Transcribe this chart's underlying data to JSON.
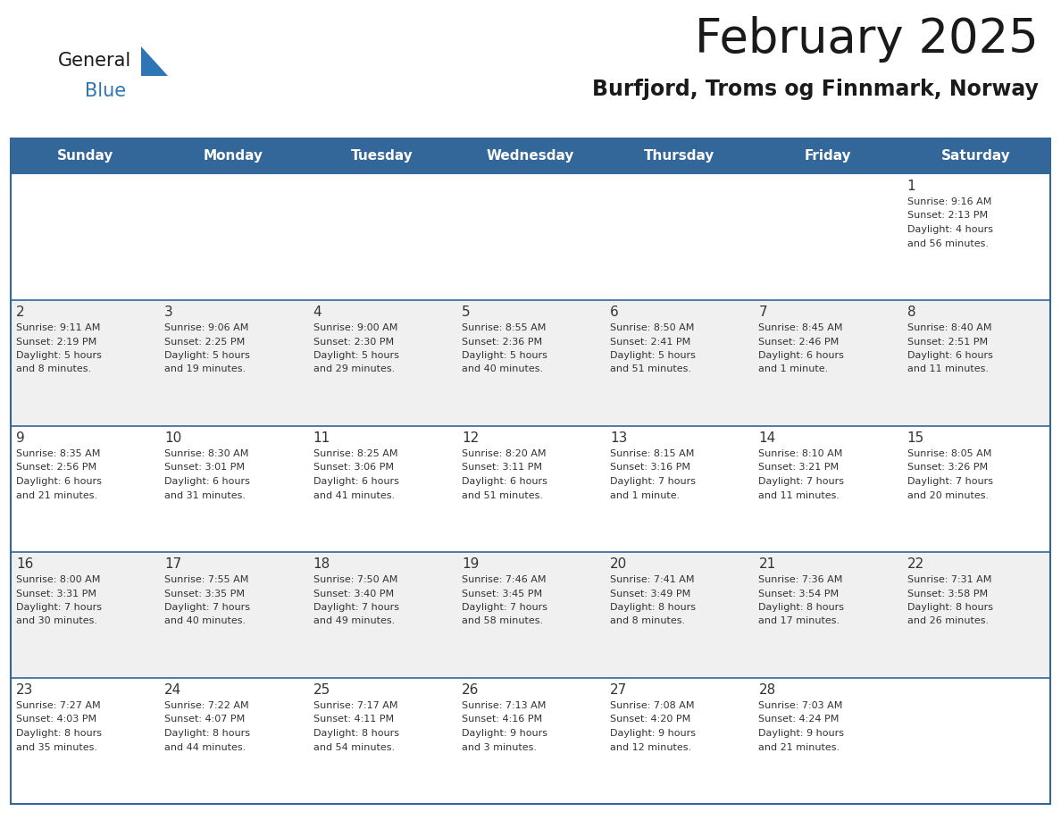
{
  "title": "February 2025",
  "subtitle": "Burfjord, Troms og Finnmark, Norway",
  "days_of_week": [
    "Sunday",
    "Monday",
    "Tuesday",
    "Wednesday",
    "Thursday",
    "Friday",
    "Saturday"
  ],
  "header_bg": "#336699",
  "header_text": "#FFFFFF",
  "row_bg_light": "#F0F0F0",
  "row_bg_white": "#FFFFFF",
  "cell_text": "#333333",
  "day_num_color": "#333333",
  "grid_color": "#336699",
  "title_color": "#1a1a1a",
  "subtitle_color": "#1a1a1a",
  "logo_general_color": "#1a1a1a",
  "logo_blue_color": "#2E75B6",
  "calendar": [
    [
      {
        "day": 0,
        "info": ""
      },
      {
        "day": 0,
        "info": ""
      },
      {
        "day": 0,
        "info": ""
      },
      {
        "day": 0,
        "info": ""
      },
      {
        "day": 0,
        "info": ""
      },
      {
        "day": 0,
        "info": ""
      },
      {
        "day": 1,
        "info": "Sunrise: 9:16 AM\nSunset: 2:13 PM\nDaylight: 4 hours\nand 56 minutes."
      }
    ],
    [
      {
        "day": 2,
        "info": "Sunrise: 9:11 AM\nSunset: 2:19 PM\nDaylight: 5 hours\nand 8 minutes."
      },
      {
        "day": 3,
        "info": "Sunrise: 9:06 AM\nSunset: 2:25 PM\nDaylight: 5 hours\nand 19 minutes."
      },
      {
        "day": 4,
        "info": "Sunrise: 9:00 AM\nSunset: 2:30 PM\nDaylight: 5 hours\nand 29 minutes."
      },
      {
        "day": 5,
        "info": "Sunrise: 8:55 AM\nSunset: 2:36 PM\nDaylight: 5 hours\nand 40 minutes."
      },
      {
        "day": 6,
        "info": "Sunrise: 8:50 AM\nSunset: 2:41 PM\nDaylight: 5 hours\nand 51 minutes."
      },
      {
        "day": 7,
        "info": "Sunrise: 8:45 AM\nSunset: 2:46 PM\nDaylight: 6 hours\nand 1 minute."
      },
      {
        "day": 8,
        "info": "Sunrise: 8:40 AM\nSunset: 2:51 PM\nDaylight: 6 hours\nand 11 minutes."
      }
    ],
    [
      {
        "day": 9,
        "info": "Sunrise: 8:35 AM\nSunset: 2:56 PM\nDaylight: 6 hours\nand 21 minutes."
      },
      {
        "day": 10,
        "info": "Sunrise: 8:30 AM\nSunset: 3:01 PM\nDaylight: 6 hours\nand 31 minutes."
      },
      {
        "day": 11,
        "info": "Sunrise: 8:25 AM\nSunset: 3:06 PM\nDaylight: 6 hours\nand 41 minutes."
      },
      {
        "day": 12,
        "info": "Sunrise: 8:20 AM\nSunset: 3:11 PM\nDaylight: 6 hours\nand 51 minutes."
      },
      {
        "day": 13,
        "info": "Sunrise: 8:15 AM\nSunset: 3:16 PM\nDaylight: 7 hours\nand 1 minute."
      },
      {
        "day": 14,
        "info": "Sunrise: 8:10 AM\nSunset: 3:21 PM\nDaylight: 7 hours\nand 11 minutes."
      },
      {
        "day": 15,
        "info": "Sunrise: 8:05 AM\nSunset: 3:26 PM\nDaylight: 7 hours\nand 20 minutes."
      }
    ],
    [
      {
        "day": 16,
        "info": "Sunrise: 8:00 AM\nSunset: 3:31 PM\nDaylight: 7 hours\nand 30 minutes."
      },
      {
        "day": 17,
        "info": "Sunrise: 7:55 AM\nSunset: 3:35 PM\nDaylight: 7 hours\nand 40 minutes."
      },
      {
        "day": 18,
        "info": "Sunrise: 7:50 AM\nSunset: 3:40 PM\nDaylight: 7 hours\nand 49 minutes."
      },
      {
        "day": 19,
        "info": "Sunrise: 7:46 AM\nSunset: 3:45 PM\nDaylight: 7 hours\nand 58 minutes."
      },
      {
        "day": 20,
        "info": "Sunrise: 7:41 AM\nSunset: 3:49 PM\nDaylight: 8 hours\nand 8 minutes."
      },
      {
        "day": 21,
        "info": "Sunrise: 7:36 AM\nSunset: 3:54 PM\nDaylight: 8 hours\nand 17 minutes."
      },
      {
        "day": 22,
        "info": "Sunrise: 7:31 AM\nSunset: 3:58 PM\nDaylight: 8 hours\nand 26 minutes."
      }
    ],
    [
      {
        "day": 23,
        "info": "Sunrise: 7:27 AM\nSunset: 4:03 PM\nDaylight: 8 hours\nand 35 minutes."
      },
      {
        "day": 24,
        "info": "Sunrise: 7:22 AM\nSunset: 4:07 PM\nDaylight: 8 hours\nand 44 minutes."
      },
      {
        "day": 25,
        "info": "Sunrise: 7:17 AM\nSunset: 4:11 PM\nDaylight: 8 hours\nand 54 minutes."
      },
      {
        "day": 26,
        "info": "Sunrise: 7:13 AM\nSunset: 4:16 PM\nDaylight: 9 hours\nand 3 minutes."
      },
      {
        "day": 27,
        "info": "Sunrise: 7:08 AM\nSunset: 4:20 PM\nDaylight: 9 hours\nand 12 minutes."
      },
      {
        "day": 28,
        "info": "Sunrise: 7:03 AM\nSunset: 4:24 PM\nDaylight: 9 hours\nand 21 minutes."
      },
      {
        "day": 0,
        "info": ""
      }
    ]
  ]
}
